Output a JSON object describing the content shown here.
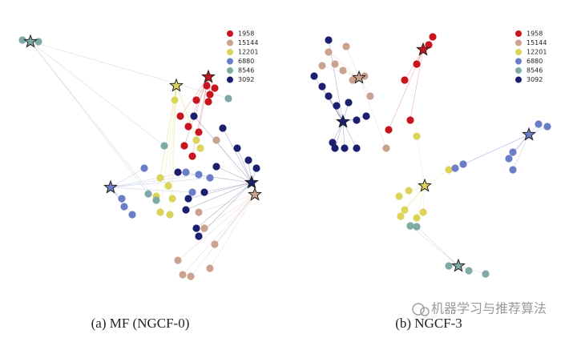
{
  "chart_data": [
    {
      "type": "scatter",
      "caption": "(a)  MF (NGCF-0)",
      "xlim": [
        0,
        340
      ],
      "ylim": [
        360,
        0
      ],
      "legend": "upper right",
      "series": [
        {
          "name": "1958",
          "color": "#c8141e",
          "x": [
            248,
            252,
            235,
            250,
            215,
            225,
            238,
            220,
            230,
            258
          ],
          "y": [
            77,
            88,
            95,
            97,
            115,
            128,
            135,
            152,
            165,
            80
          ],
          "star_x": 250,
          "star_y": 66
        },
        {
          "name": "15144",
          "color": "#caa38e",
          "x": [
            212,
            228,
            218,
            258,
            252,
            245,
            238,
            260
          ],
          "y": [
            295,
            315,
            313,
            275,
            305,
            255,
            235,
            145
          ],
          "star_x": 308,
          "star_y": 213
        },
        {
          "name": "12201",
          "color": "#dcd45a",
          "x": [
            208,
            190,
            200,
            185,
            205,
            190,
            202,
            240,
            235
          ],
          "y": [
            95,
            192,
            202,
            215,
            218,
            235,
            238,
            155,
            145
          ],
          "star_x": 210,
          "star_y": 77
        },
        {
          "name": "6880",
          "color": "#6a7ec7",
          "x": [
            170,
            142,
            145,
            155,
            222,
            238,
            252,
            230
          ],
          "y": [
            180,
            218,
            228,
            238,
            185,
            188,
            192,
            210
          ],
          "star_x": 128,
          "star_y": 204
        },
        {
          "name": "8546",
          "color": "#7fa9a5",
          "x": [
            18,
            38,
            275,
            175,
            185,
            195
          ],
          "y": [
            20,
            22,
            93,
            212,
            220,
            152
          ],
          "star_x": 28,
          "star_y": 22
        },
        {
          "name": "3092",
          "color": "#1b1f6e",
          "x": [
            232,
            268,
            286,
            300,
            310,
            260,
            212,
            235,
            238,
            222,
            225,
            245
          ],
          "y": [
            115,
            130,
            155,
            170,
            180,
            178,
            185,
            255,
            265,
            232,
            218,
            210
          ],
          "star_x": 304,
          "star_y": 198
        }
      ]
    },
    {
      "type": "scatter",
      "caption": "(b)  NGCF-3",
      "xlim": [
        0,
        340
      ],
      "ylim": [
        360,
        0
      ],
      "legend": "upper right",
      "series": [
        {
          "name": "1958",
          "color": "#c8141e",
          "x": [
            170,
            165,
            150,
            135,
            115,
            142
          ],
          "y": [
            16,
            26,
            50,
            70,
            132,
            120
          ],
          "star_x": 158,
          "star_y": 32
        },
        {
          "name": "15144",
          "color": "#caa38e",
          "x": [
            40,
            62,
            48,
            32,
            58,
            70,
            92,
            112,
            85
          ],
          "y": [
            35,
            28,
            50,
            52,
            58,
            70,
            90,
            155,
            65
          ],
          "star_x": 78,
          "star_y": 67
        },
        {
          "name": "12201",
          "color": "#dcd45a",
          "x": [
            150,
            190,
            128,
            140,
            135,
            150,
            158,
            130
          ],
          "y": [
            140,
            182,
            215,
            208,
            232,
            242,
            235,
            240
          ],
          "star_x": 160,
          "star_y": 202
        },
        {
          "name": "6880",
          "color": "#6a7ec7",
          "x": [
            270,
            265,
            270,
            302,
            313,
            208,
            198
          ],
          "y": [
            160,
            168,
            182,
            125,
            128,
            175,
            180
          ],
          "star_x": 290,
          "star_y": 138
        },
        {
          "name": "8546",
          "color": "#7fa9a5",
          "x": [
            142,
            150,
            215,
            236,
            190
          ],
          "y": [
            252,
            253,
            308,
            312,
            302
          ],
          "star_x": 202,
          "star_y": 302
        },
        {
          "name": "3092",
          "color": "#1b1f6e",
          "x": [
            40,
            22,
            32,
            40,
            50,
            65,
            75,
            45,
            60,
            75,
            48,
            87
          ],
          "y": [
            20,
            65,
            78,
            90,
            102,
            98,
            120,
            148,
            155,
            155,
            155,
            115
          ],
          "star_x": 58,
          "star_y": 122
        }
      ]
    }
  ],
  "watermark": "机器学习与推荐算法"
}
